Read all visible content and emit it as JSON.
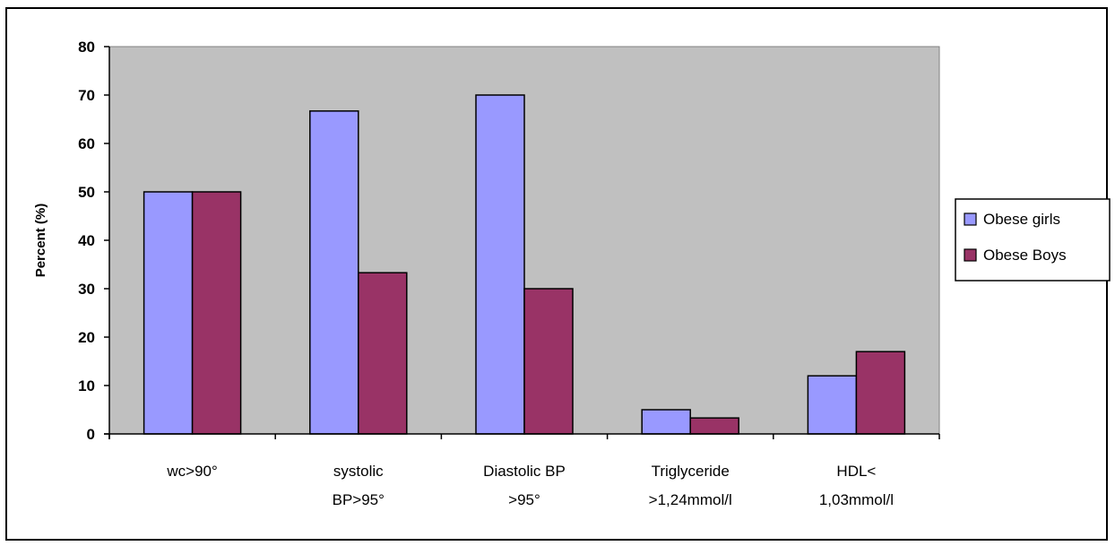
{
  "chart_data": {
    "type": "bar",
    "title": "",
    "xlabel": "",
    "ylabel": "Percent (%)",
    "ylim": [
      0,
      80
    ],
    "yticks": [
      "0",
      "10",
      "20",
      "30",
      "40",
      "50",
      "60",
      "70",
      "80"
    ],
    "categories": [
      [
        "wc>90°"
      ],
      [
        "systolic",
        "BP>95°"
      ],
      [
        "Diastolic BP",
        ">95°"
      ],
      [
        "Triglyceride",
        ">1,24mmol/l"
      ],
      [
        "HDL<",
        "1,03mmol/l"
      ]
    ],
    "series": [
      {
        "name": "Obese girls",
        "color": "#9999ff",
        "values": [
          50,
          66.7,
          70,
          5,
          12
        ]
      },
      {
        "name": "Obese Boys",
        "color": "#993366",
        "values": [
          50,
          33.3,
          30,
          3.3,
          17
        ]
      }
    ],
    "plot_background": "#c0c0c0",
    "grid": false,
    "legend_position": "right"
  }
}
